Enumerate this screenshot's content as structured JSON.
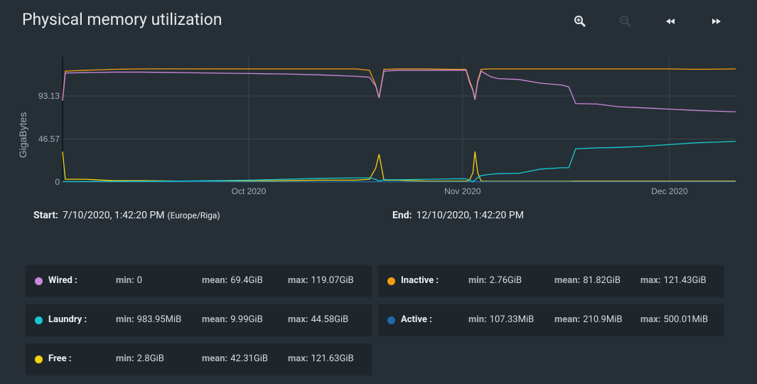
{
  "header": {
    "title": "Physical memory utilization"
  },
  "chart_data": {
    "type": "line",
    "ylabel": "GigaBytes",
    "x": [
      248,
      248.4,
      251.3,
      255.4,
      259.5,
      264.7,
      269.9,
      275.0,
      280.2,
      285.3,
      290.5,
      292.5,
      293.4,
      293.9,
      294.6,
      296.7,
      300.8,
      304.9,
      306.5,
      307.0,
      307.5,
      307.8,
      308.2,
      308.7,
      310.1,
      311.1,
      314.2,
      317.3,
      320.4,
      321.4,
      322.4,
      325.5,
      328.6,
      331.7,
      335.8,
      339.9,
      345.6
    ],
    "xlim": [
      248,
      345.6
    ],
    "xticks": [
      {
        "value": 275,
        "label": "Oct 2020"
      },
      {
        "value": 306,
        "label": "Nov 2020"
      },
      {
        "value": 336,
        "label": "Dec 2020"
      }
    ],
    "ylim": [
      0,
      135.5
    ],
    "yticks": [
      0,
      46.57,
      93.13
    ],
    "grid": true,
    "series": [
      {
        "name": "Wired :",
        "color": "#cc88dd",
        "values": [
          88,
          118,
          118.5,
          119,
          119,
          118.5,
          118,
          117.5,
          117,
          116,
          114.5,
          113.5,
          104,
          91,
          120,
          121,
          121,
          121,
          121,
          108,
          99,
          89,
          108,
          120,
          114,
          112,
          111,
          107,
          105,
          103,
          85,
          84.5,
          81.5,
          80.5,
          79,
          77.5,
          76
        ]
      },
      {
        "name": "Inactive :",
        "color": "#f39c12",
        "values": [
          89,
          120,
          121,
          122,
          122.5,
          122.5,
          122.5,
          122.5,
          122.5,
          122.5,
          122.5,
          121,
          105,
          92,
          122,
          122.5,
          122.5,
          122,
          122,
          110,
          100,
          90,
          110,
          122,
          122.5,
          122.5,
          122.5,
          122.5,
          122.5,
          122.5,
          122.5,
          122.5,
          122.5,
          122.5,
          122.5,
          122,
          122.5
        ]
      },
      {
        "name": "Laundry :",
        "color": "#16c9d1",
        "values": [
          0.5,
          0.5,
          0.5,
          0.7,
          0.8,
          1,
          1.5,
          2,
          3,
          4,
          4.5,
          4.5,
          3,
          1,
          2.5,
          2.5,
          3,
          3.5,
          3.5,
          2,
          0.5,
          2,
          5,
          7,
          8.5,
          9,
          9.5,
          14,
          15.5,
          15.5,
          36,
          37,
          37.5,
          38.5,
          40.5,
          42.5,
          44
        ]
      },
      {
        "name": "Active :",
        "color": "#1f6aa8",
        "values": [
          0.4,
          0.4,
          0.4,
          0.4,
          0.4,
          0.4,
          0.4,
          0.4,
          0.4,
          0.4,
          0.4,
          0.4,
          0.4,
          0.4,
          0.4,
          0.4,
          0.4,
          0.4,
          0.4,
          0.4,
          0.4,
          0.4,
          0.4,
          0.4,
          0.4,
          0.4,
          0.4,
          0.4,
          0.4,
          0.4,
          0.4,
          0.4,
          0.4,
          0.4,
          0.4,
          0.4,
          0.4
        ]
      },
      {
        "name": "Free :",
        "color": "#f2d310",
        "values": [
          33,
          3,
          3,
          1.5,
          1.5,
          1,
          1,
          1,
          1.5,
          2,
          2,
          3,
          15,
          30,
          2,
          2,
          1,
          1,
          1,
          2,
          10,
          33,
          10,
          1,
          0.8,
          0.8,
          0.8,
          0.8,
          0.8,
          0.8,
          1,
          1,
          1,
          1,
          1,
          1,
          1
        ]
      }
    ]
  },
  "range": {
    "start_label": "Start:",
    "start": "7/10/2020, 1:42:20 PM",
    "tz": "(Europe/Riga)",
    "end_label": "End:",
    "end": "12/10/2020, 1:42:20 PM"
  },
  "stat_labels": [
    "min:",
    "mean:",
    "max:"
  ],
  "stats": [
    [
      "0",
      "69.4GiB",
      "119.07GiB"
    ],
    [
      "2.76GiB",
      "81.82GiB",
      "121.43GiB"
    ],
    [
      "983.95MiB",
      "9.99GiB",
      "44.58GiB"
    ],
    [
      "107.33MiB",
      "210.9MiB",
      "500.01MiB"
    ],
    [
      "2.8GiB",
      "42.31GiB",
      "121.63GiB"
    ]
  ]
}
